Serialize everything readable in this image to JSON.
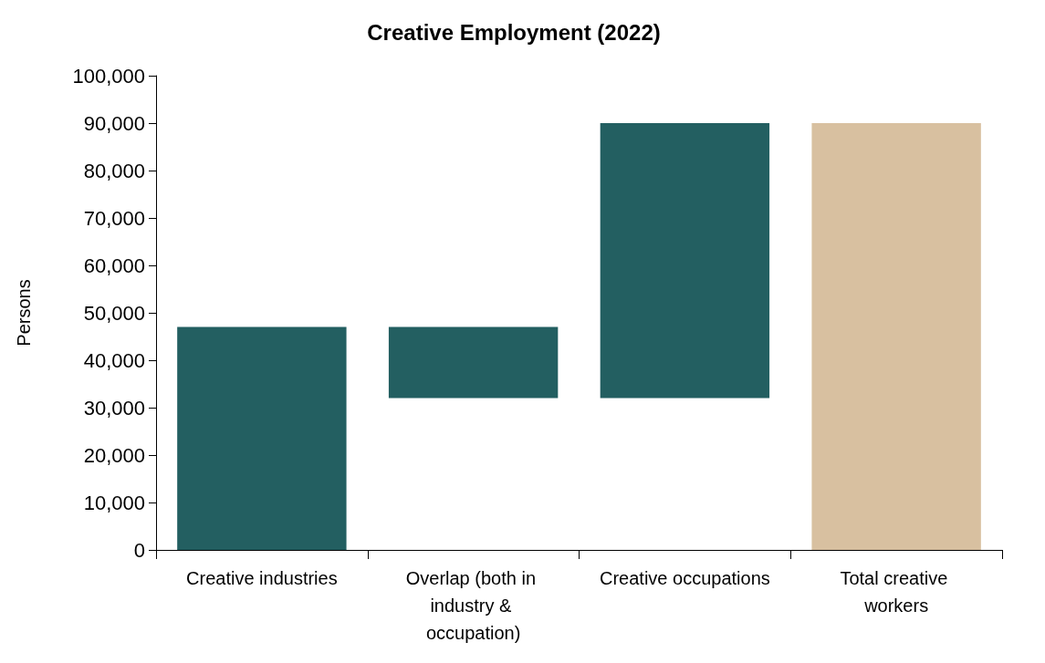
{
  "chart_data": {
    "type": "bar",
    "title": "Creative Employment (2022)",
    "ylabel": "Persons",
    "categories": [
      "Creative industries",
      "Overlap (both in industry & occupation)",
      "Creative occupations",
      "Total creative workers"
    ],
    "values": [
      47000,
      15000,
      58000,
      90000
    ],
    "base": [
      0,
      32000,
      32000,
      0
    ],
    "colors": [
      "#235f61",
      "#235f61",
      "#235f61",
      "#d8c0a0"
    ],
    "ylim": [
      0,
      100000
    ],
    "yticks": [
      0,
      {
        "value": 10000,
        "label": "10,000"
      },
      {
        "value": 20000,
        "label": "20,000"
      },
      {
        "value": 30000,
        "label": "30,000"
      },
      {
        "value": 40000,
        "label": "40,000"
      },
      {
        "value": 50000,
        "label": "50,000"
      },
      {
        "value": 60000,
        "label": "60,000"
      },
      {
        "value": 70000,
        "label": "70,000"
      },
      {
        "value": 80000,
        "label": "80,000"
      },
      {
        "value": 90000,
        "label": "90,000"
      },
      {
        "value": 100000,
        "label": "100,000"
      }
    ],
    "grid": false
  }
}
